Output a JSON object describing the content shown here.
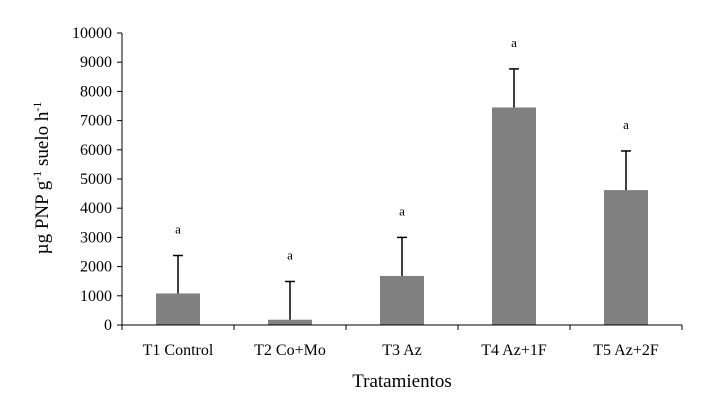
{
  "chart_data": {
    "type": "bar",
    "categories": [
      "T1 Control",
      "T2 Co+Mo",
      "T3 Az",
      "T4 Az+1F",
      "T5 Az+2F"
    ],
    "values": [
      1080,
      180,
      1680,
      7450,
      4620
    ],
    "error_upper": [
      2380,
      1490,
      3000,
      8770,
      5960
    ],
    "significance": [
      "a",
      "a",
      "a",
      "a",
      "a"
    ],
    "xlabel": "Tratamientos",
    "ylabel": {
      "prefix": "µg PNP g",
      "sup1": "-1",
      "middle": " suelo h",
      "sup2": "-1"
    },
    "ylim": [
      0,
      10000
    ],
    "yticks": [
      0,
      1000,
      2000,
      3000,
      4000,
      5000,
      6000,
      7000,
      8000,
      9000,
      10000
    ],
    "grid": false,
    "legend": "none",
    "bar_color": "#808080",
    "axis_color": "#000000"
  }
}
